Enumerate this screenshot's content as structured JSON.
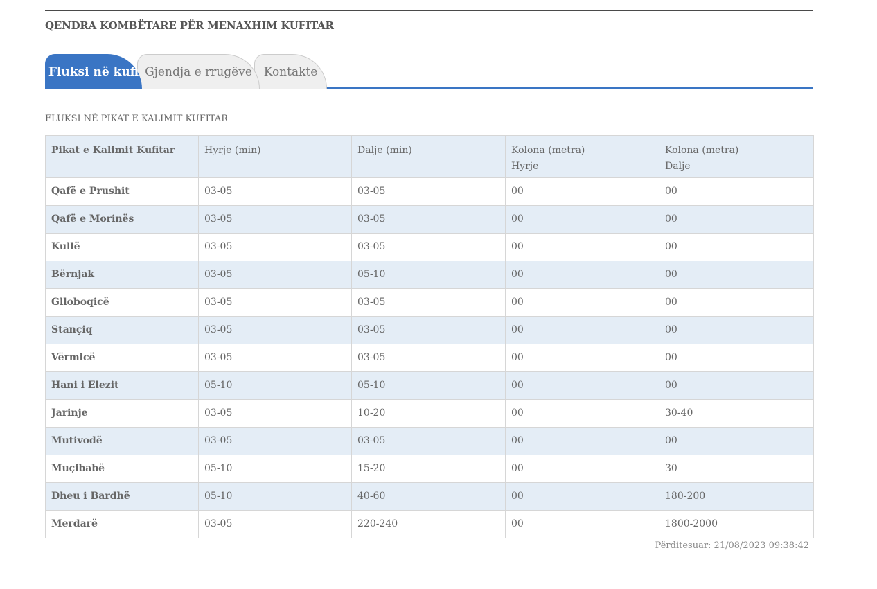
{
  "header": {
    "title": "QENDRA KOMBËTARE PËR MENAXHIM KUFITAR"
  },
  "tabs": [
    {
      "label": "Fluksi në kufi",
      "active": true
    },
    {
      "label": "Gjendja e rrugëve",
      "active": false
    },
    {
      "label": "Kontakte",
      "active": false
    }
  ],
  "section": {
    "title": "FLUKSI NË PIKAT E KALIMIT KUFITAR"
  },
  "table": {
    "headers": {
      "col1": "Pikat e Kalimit Kufitar",
      "col2": "Hyrje (min)",
      "col3": "Dalje (min)",
      "col4_line1": "Kolona (metra)",
      "col4_line2": "Hyrje",
      "col5_line1": "Kolona (metra)",
      "col5_line2": "Dalje"
    },
    "rows": [
      {
        "name": "Qafë e Prushit",
        "entry": "03-05",
        "exit": "03-05",
        "queue_entry": "00",
        "queue_exit": "00"
      },
      {
        "name": "Qafë e Morinës",
        "entry": "03-05",
        "exit": "03-05",
        "queue_entry": "00",
        "queue_exit": "00"
      },
      {
        "name": "Kullë",
        "entry": "03-05",
        "exit": "03-05",
        "queue_entry": "00",
        "queue_exit": "00"
      },
      {
        "name": "Bërnjak",
        "entry": "03-05",
        "exit": "05-10",
        "queue_entry": "00",
        "queue_exit": "00"
      },
      {
        "name": "Glloboqicë",
        "entry": "03-05",
        "exit": "03-05",
        "queue_entry": "00",
        "queue_exit": "00"
      },
      {
        "name": "Stançiq",
        "entry": "03-05",
        "exit": "03-05",
        "queue_entry": "00",
        "queue_exit": "00"
      },
      {
        "name": "Vërmicë",
        "entry": "03-05",
        "exit": "03-05",
        "queue_entry": "00",
        "queue_exit": "00"
      },
      {
        "name": "Hani i Elezit",
        "entry": "05-10",
        "exit": "05-10",
        "queue_entry": "00",
        "queue_exit": "00"
      },
      {
        "name": "Jarinje",
        "entry": "03-05",
        "exit": "10-20",
        "queue_entry": "00",
        "queue_exit": "30-40"
      },
      {
        "name": "Mutivodë",
        "entry": "03-05",
        "exit": "03-05",
        "queue_entry": "00",
        "queue_exit": "00"
      },
      {
        "name": "Muçibabë",
        "entry": "05-10",
        "exit": "15-20",
        "queue_entry": "00",
        "queue_exit": "30"
      },
      {
        "name": "Dheu i Bardhë",
        "entry": "05-10",
        "exit": "40-60",
        "queue_entry": "00",
        "queue_exit": "180-200"
      },
      {
        "name": "Merdarë",
        "entry": "03-05",
        "exit": "220-240",
        "queue_entry": "00",
        "queue_exit": "1800-2000"
      }
    ]
  },
  "footer": {
    "updated": "Përditesuar: 21/08/2023 09:38:42"
  },
  "colors": {
    "accent": "#3a75c4",
    "row_stripe": "#e4edf6",
    "tab_inactive": "#efefef"
  }
}
